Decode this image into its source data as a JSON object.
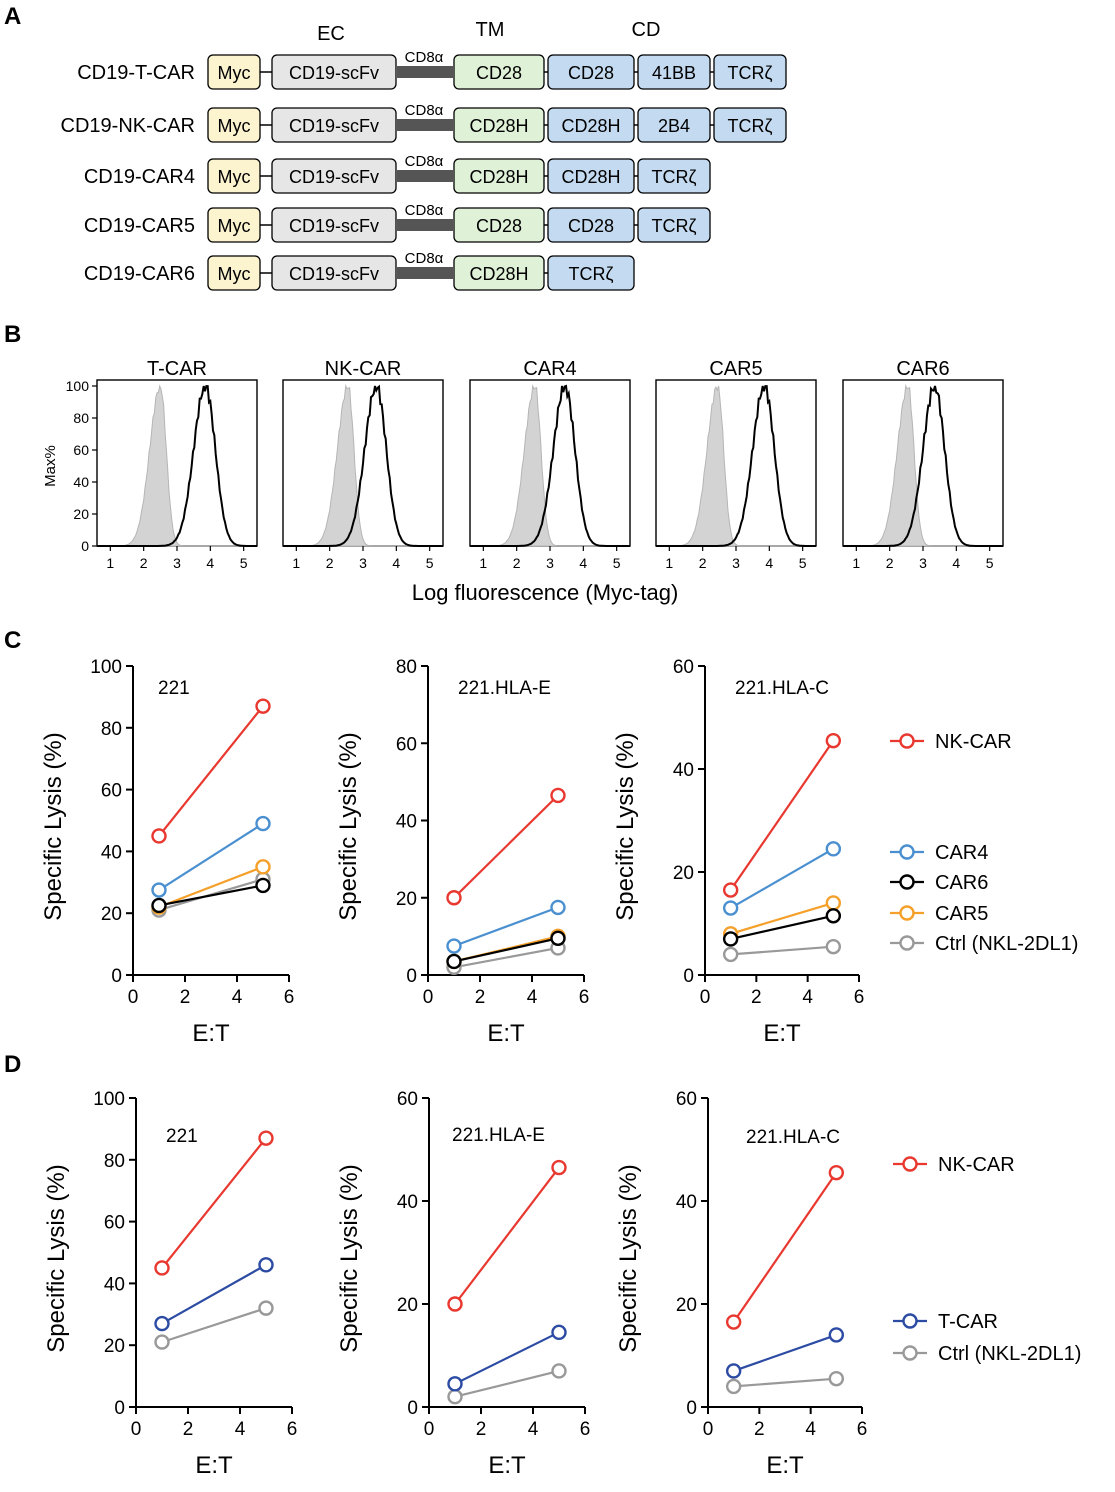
{
  "panel_labels": [
    "A",
    "B",
    "C",
    "D"
  ],
  "panel_a": {
    "headers": {
      "ec": "EC",
      "tm": "TM",
      "cd": "CD"
    },
    "hinge_label": "CD8α",
    "constructs": [
      {
        "name": "CD19-T-CAR",
        "myc": "Myc",
        "scfv": "CD19-scFv",
        "tm": "CD28",
        "cd": [
          "CD28",
          "41BB",
          "TCRζ"
        ]
      },
      {
        "name": "CD19-NK-CAR",
        "myc": "Myc",
        "scfv": "CD19-scFv",
        "tm": "CD28H",
        "cd": [
          "CD28H",
          "2B4",
          "TCRζ"
        ]
      },
      {
        "name": "CD19-CAR4",
        "myc": "Myc",
        "scfv": "CD19-scFv",
        "tm": "CD28H",
        "cd": [
          "CD28H",
          "TCRζ"
        ]
      },
      {
        "name": "CD19-CAR5",
        "myc": "Myc",
        "scfv": "CD19-scFv",
        "tm": "CD28",
        "cd": [
          "CD28",
          "TCRζ"
        ]
      },
      {
        "name": "CD19-CAR6",
        "myc": "Myc",
        "scfv": "CD19-scFv",
        "tm": "CD28H",
        "cd": [
          "TCRζ"
        ]
      }
    ],
    "colors": {
      "myc": "#fcf3cf",
      "scfv": "#e6e6e6",
      "tm": "#dff2d8",
      "cd": "#c3daf0",
      "hinge": "#555555"
    }
  },
  "panel_b": {
    "ylabel": "Max%",
    "xlabel": "Log fluorescence (Myc-tag)",
    "y_ticks": [
      "0",
      "20",
      "40",
      "60",
      "80",
      "100"
    ],
    "x_ticks": [
      "1",
      "2",
      "3",
      "4",
      "5"
    ],
    "histograms": [
      {
        "title": "T-CAR",
        "ctrl_peak": 2.5,
        "car_peak": 3.85
      },
      {
        "title": "NK-CAR",
        "ctrl_peak": 2.55,
        "car_peak": 3.4
      },
      {
        "title": "CAR4",
        "ctrl_peak": 2.55,
        "car_peak": 3.45
      },
      {
        "title": "CAR5",
        "ctrl_peak": 2.45,
        "car_peak": 3.85
      },
      {
        "title": "CAR6",
        "ctrl_peak": 2.55,
        "car_peak": 3.35
      }
    ]
  },
  "chart_data": [
    {
      "type": "line",
      "panel": "C",
      "title": "221",
      "xlabel": "E:T",
      "ylabel": "Specific Lysis (%)",
      "x": [
        1,
        5
      ],
      "xlim": [
        0,
        6
      ],
      "ylim": [
        0,
        100
      ],
      "x_ticks": [
        "0",
        "2",
        "4",
        "6"
      ],
      "y_ticks": [
        "0",
        "20",
        "40",
        "60",
        "80",
        "100"
      ],
      "series": [
        {
          "name": "NK-CAR",
          "color": "#e8382f",
          "values": [
            45,
            87
          ]
        },
        {
          "name": "CAR4",
          "color": "#4a90d0",
          "values": [
            27.5,
            49
          ]
        },
        {
          "name": "CAR6",
          "color": "#000000",
          "values": [
            22.5,
            29
          ]
        },
        {
          "name": "CAR5",
          "color": "#f5a02a",
          "values": [
            22,
            35
          ]
        },
        {
          "name": "Ctrl (NKL-2DL1)",
          "color": "#999999",
          "values": [
            21,
            31
          ]
        }
      ]
    },
    {
      "type": "line",
      "panel": "C",
      "title": "221.HLA-E",
      "xlabel": "E:T",
      "ylabel": "Specific Lysis (%)",
      "x": [
        1,
        5
      ],
      "xlim": [
        0,
        6
      ],
      "ylim": [
        0,
        80
      ],
      "x_ticks": [
        "0",
        "2",
        "4",
        "6"
      ],
      "y_ticks": [
        "0",
        "20",
        "40",
        "60",
        "80"
      ],
      "series": [
        {
          "name": "NK-CAR",
          "color": "#e8382f",
          "values": [
            20,
            46.5
          ]
        },
        {
          "name": "CAR4",
          "color": "#4a90d0",
          "values": [
            7.5,
            17.5
          ]
        },
        {
          "name": "CAR6",
          "color": "#000000",
          "values": [
            3.5,
            9.5
          ]
        },
        {
          "name": "CAR5",
          "color": "#f5a02a",
          "values": [
            3.5,
            10
          ]
        },
        {
          "name": "Ctrl (NKL-2DL1)",
          "color": "#999999",
          "values": [
            2,
            7
          ]
        }
      ]
    },
    {
      "type": "line",
      "panel": "C",
      "title": "221.HLA-C",
      "xlabel": "E:T",
      "ylabel": "Specific Lysis (%)",
      "x": [
        1,
        5
      ],
      "xlim": [
        0,
        6
      ],
      "ylim": [
        0,
        60
      ],
      "x_ticks": [
        "0",
        "2",
        "4",
        "6"
      ],
      "y_ticks": [
        "0",
        "20",
        "40",
        "60"
      ],
      "series": [
        {
          "name": "NK-CAR",
          "color": "#e8382f",
          "values": [
            16.5,
            45.5
          ]
        },
        {
          "name": "CAR4",
          "color": "#4a90d0",
          "values": [
            13,
            24.5
          ]
        },
        {
          "name": "CAR6",
          "color": "#000000",
          "values": [
            7,
            11.5
          ]
        },
        {
          "name": "CAR5",
          "color": "#f5a02a",
          "values": [
            8,
            14
          ]
        },
        {
          "name": "Ctrl (NKL-2DL1)",
          "color": "#999999",
          "values": [
            4,
            5.5
          ]
        }
      ]
    },
    {
      "type": "line",
      "panel": "D",
      "title": "221",
      "xlabel": "E:T",
      "ylabel": "Specific Lysis (%)",
      "x": [
        1,
        5
      ],
      "xlim": [
        0,
        6
      ],
      "ylim": [
        0,
        100
      ],
      "x_ticks": [
        "0",
        "2",
        "4",
        "6"
      ],
      "y_ticks": [
        "0",
        "20",
        "40",
        "60",
        "80",
        "100"
      ],
      "series": [
        {
          "name": "NK-CAR",
          "color": "#e8382f",
          "values": [
            45,
            87
          ]
        },
        {
          "name": "T-CAR",
          "color": "#2c4ba3",
          "values": [
            27,
            46
          ]
        },
        {
          "name": "Ctrl (NKL-2DL1)",
          "color": "#999999",
          "values": [
            21,
            32
          ]
        }
      ]
    },
    {
      "type": "line",
      "panel": "D",
      "title": "221.HLA-E",
      "xlabel": "E:T",
      "ylabel": "Specific Lysis (%)",
      "x": [
        1,
        5
      ],
      "xlim": [
        0,
        6
      ],
      "ylim": [
        0,
        60
      ],
      "x_ticks": [
        "0",
        "2",
        "4",
        "6"
      ],
      "y_ticks": [
        "0",
        "20",
        "40",
        "60"
      ],
      "series": [
        {
          "name": "NK-CAR",
          "color": "#e8382f",
          "values": [
            20,
            46.5
          ]
        },
        {
          "name": "T-CAR",
          "color": "#2c4ba3",
          "values": [
            4.5,
            14.5
          ]
        },
        {
          "name": "Ctrl (NKL-2DL1)",
          "color": "#999999",
          "values": [
            2,
            7
          ]
        }
      ]
    },
    {
      "type": "line",
      "panel": "D",
      "title": "221.HLA-C",
      "xlabel": "E:T",
      "ylabel": "Specific Lysis (%)",
      "x": [
        1,
        5
      ],
      "xlim": [
        0,
        6
      ],
      "ylim": [
        0,
        60
      ],
      "x_ticks": [
        "0",
        "2",
        "4",
        "6"
      ],
      "y_ticks": [
        "0",
        "20",
        "40",
        "60"
      ],
      "series": [
        {
          "name": "NK-CAR",
          "color": "#e8382f",
          "values": [
            16.5,
            45.5
          ]
        },
        {
          "name": "T-CAR",
          "color": "#2c4ba3",
          "values": [
            7,
            14
          ]
        },
        {
          "name": "Ctrl (NKL-2DL1)",
          "color": "#999999",
          "values": [
            4,
            5.5
          ]
        }
      ]
    }
  ],
  "legend_c": [
    {
      "label": "NK-CAR",
      "color": "#e8382f"
    },
    {
      "label": "CAR4",
      "color": "#4a90d0"
    },
    {
      "label": "CAR6",
      "color": "#000000"
    },
    {
      "label": "CAR5",
      "color": "#f5a02a"
    },
    {
      "label": "Ctrl (NKL-2DL1)",
      "color": "#999999"
    }
  ],
  "legend_d": [
    {
      "label": "NK-CAR",
      "color": "#e8382f"
    },
    {
      "label": "T-CAR",
      "color": "#2c4ba3"
    },
    {
      "label": "Ctrl (NKL-2DL1)",
      "color": "#999999"
    }
  ]
}
